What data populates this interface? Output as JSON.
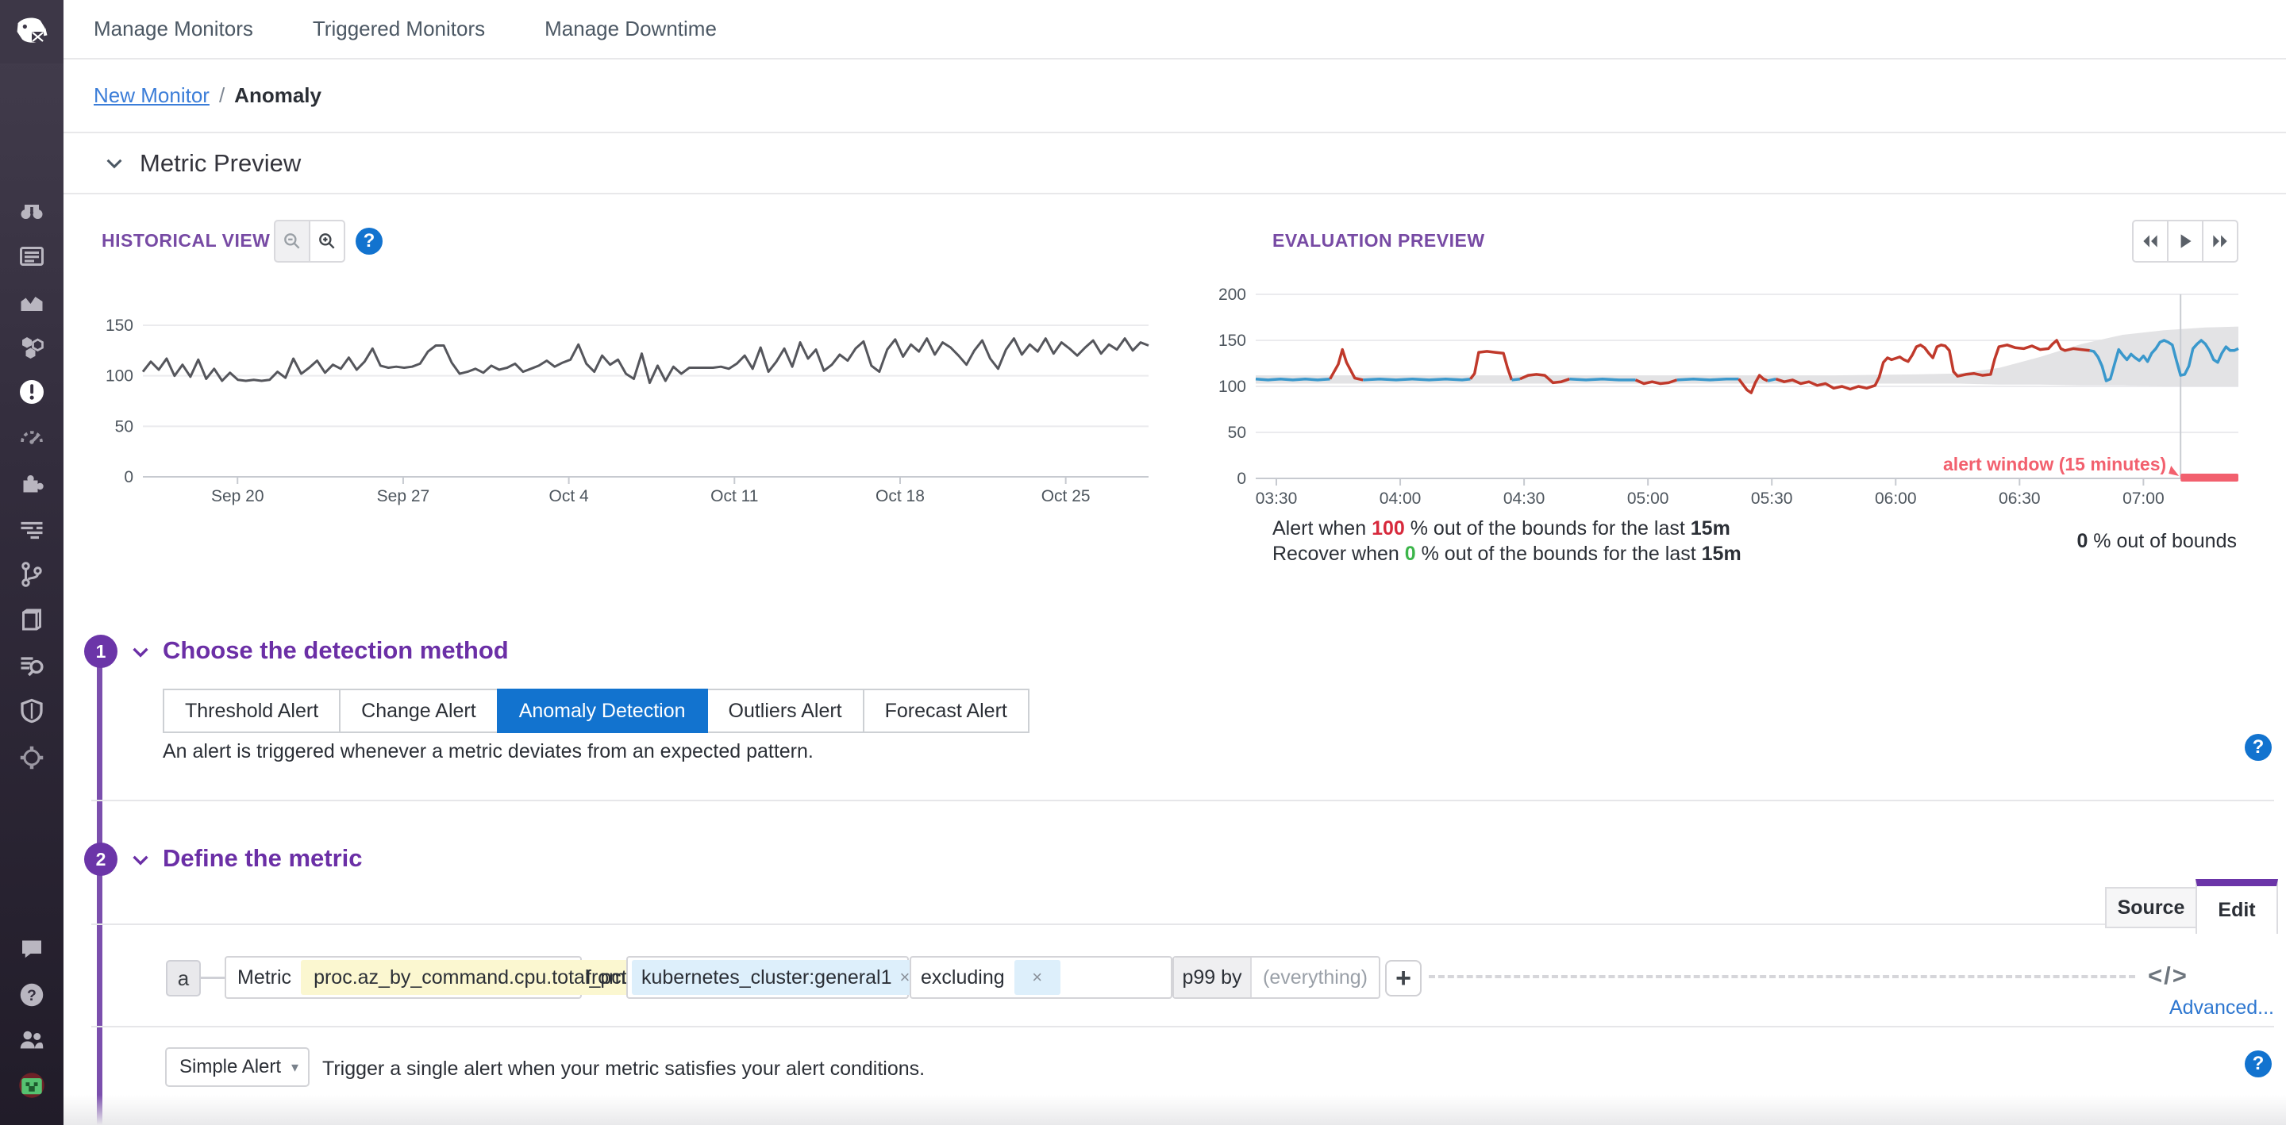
{
  "colors": {
    "purple": "#6b35a8",
    "tab_blue": "#1273cf",
    "link_blue": "#2e77d0",
    "chart_grey": "#55565c",
    "chart_blue": "#3a98cc",
    "chart_red": "#c0392b",
    "annotation_pink": "#f2606e",
    "alert_red": "#d7293c",
    "recover_green": "#3cb54a",
    "yellow_chip": "#fbf7d0",
    "blue_chip": "#ddeffb"
  },
  "sidebar": {
    "icons": [
      "datadog-logo",
      "binoculars-watchdog",
      "dashboards",
      "metrics",
      "infrastructure-hostmap",
      "monitors",
      "metrics-gauge",
      "integrations",
      "logs",
      "apm-traces",
      "notebooks",
      "log-explorer",
      "security",
      "network-map"
    ],
    "bottom_icons": [
      "chat",
      "help",
      "users",
      "user-avatar"
    ]
  },
  "topnav": {
    "items": [
      {
        "label": "Manage Monitors"
      },
      {
        "label": "Triggered Monitors"
      },
      {
        "label": "Manage Downtime"
      }
    ]
  },
  "breadcrumb": {
    "parent": "New Monitor",
    "separator": "/",
    "current": "Anomaly"
  },
  "metric_preview": {
    "title": "Metric Preview"
  },
  "historical": {
    "label": "HISTORICAL VIEW",
    "zoom_controls": [
      "zoom-out",
      "zoom-in"
    ],
    "help": "?"
  },
  "evaluation": {
    "label": "EVALUATION PREVIEW",
    "controls": [
      "rewind",
      "play",
      "fast-forward"
    ],
    "alert_line": {
      "prefix": "Alert when",
      "value": "100",
      "middle": "% out of the bounds for the last",
      "duration": "15m"
    },
    "recover_line": {
      "prefix": "Recover when",
      "value": "0",
      "middle": "% out of the bounds for the last",
      "duration": "15m"
    },
    "out_of_bounds": {
      "value": "0",
      "label": "% out of bounds"
    }
  },
  "section1": {
    "number": "1",
    "title": "Choose the detection method",
    "tabs": [
      {
        "label": "Threshold Alert",
        "selected": false
      },
      {
        "label": "Change Alert",
        "selected": false
      },
      {
        "label": "Anomaly Detection",
        "selected": true
      },
      {
        "label": "Outliers Alert",
        "selected": false
      },
      {
        "label": "Forecast Alert",
        "selected": false
      }
    ],
    "description": "An alert is triggered whenever a metric deviates from an expected pattern.",
    "help": "?"
  },
  "section2": {
    "number": "2",
    "title": "Define the metric",
    "source_tab": "Source",
    "edit_tab": "Edit",
    "query": {
      "letter": "a",
      "metric_label": "Metric",
      "metric": "proc.az_by_command.cpu.total_pct",
      "from_label": "from",
      "from_tag": "kubernetes_cluster:general1",
      "tag_close": "×",
      "excluding_label": "excluding",
      "excluding_close": "×",
      "aggregation": "p99 by",
      "group_placeholder": "(everything)",
      "add_button": "+",
      "code_icon": "</>"
    },
    "advanced": "Advanced..."
  },
  "simple_alert": {
    "selected": "Simple Alert",
    "caret": "▾",
    "description": "Trigger a single alert when your metric satisfies your alert conditions.",
    "help": "?"
  },
  "chart_data": [
    {
      "type": "line",
      "title": "HISTORICAL VIEW",
      "xlabel": "",
      "ylabel": "",
      "grid": true,
      "x_unit": "days since Sep 16",
      "x_range": [
        0,
        42.5
      ],
      "x_ticks": [
        {
          "label": "Sep 20",
          "x": 4
        },
        {
          "label": "Sep 27",
          "x": 11
        },
        {
          "label": "Oct 4",
          "x": 18
        },
        {
          "label": "Oct 11",
          "x": 25
        },
        {
          "label": "Oct 18",
          "x": 32
        },
        {
          "label": "Oct 25",
          "x": 39
        }
      ],
      "ylim": [
        0,
        160
      ],
      "y_ticks": [
        0,
        50,
        100,
        150
      ],
      "series": [
        {
          "name": "metric",
          "color": "#55565c",
          "x_start": 0,
          "x_step": 0.33465,
          "values": [
            104,
            114,
            106,
            117,
            100,
            111,
            99,
            116,
            97,
            107,
            95,
            103,
            96,
            95,
            96,
            95,
            96,
            104,
            98,
            117,
            102,
            108,
            115,
            103,
            111,
            107,
            118,
            106,
            114,
            127,
            110,
            108,
            109,
            108,
            109,
            112,
            124,
            130,
            130,
            113,
            102,
            104,
            107,
            103,
            110,
            106,
            108,
            112,
            104,
            107,
            110,
            115,
            109,
            113,
            116,
            131,
            112,
            104,
            120,
            111,
            116,
            102,
            97,
            122,
            93,
            110,
            95,
            109,
            102,
            108,
            108,
            108,
            108,
            109,
            107,
            112,
            120,
            107,
            128,
            104,
            114,
            127,
            109,
            133,
            117,
            126,
            105,
            111,
            121,
            115,
            127,
            134,
            110,
            104,
            126,
            136,
            119,
            131,
            124,
            137,
            121,
            133,
            128,
            120,
            111,
            125,
            135,
            117,
            107,
            126,
            137,
            121,
            131,
            124,
            137,
            122,
            133,
            127,
            120,
            128,
            135,
            122,
            131,
            126,
            137,
            125,
            133,
            130
          ]
        }
      ]
    },
    {
      "type": "line",
      "title": "EVALUATION PREVIEW",
      "xlabel": "",
      "ylabel": "",
      "grid": true,
      "x_unit": "minutes since 03:25",
      "x_range": [
        0,
        238
      ],
      "x_ticks": [
        {
          "label": "03:30",
          "x": 5
        },
        {
          "label": "04:00",
          "x": 35
        },
        {
          "label": "04:30",
          "x": 65
        },
        {
          "label": "05:00",
          "x": 95
        },
        {
          "label": "05:30",
          "x": 125
        },
        {
          "label": "06:00",
          "x": 155
        },
        {
          "label": "06:30",
          "x": 185
        },
        {
          "label": "07:00",
          "x": 215
        }
      ],
      "ylim": [
        0,
        210
      ],
      "y_ticks": [
        0,
        50,
        100,
        150,
        200
      ],
      "band": {
        "color": "#e3e3e5",
        "points": [
          [
            0,
            103,
            112
          ],
          [
            20,
            103,
            112
          ],
          [
            40,
            103,
            112
          ],
          [
            60,
            103,
            112
          ],
          [
            80,
            103,
            112
          ],
          [
            100,
            103,
            112
          ],
          [
            120,
            103,
            112
          ],
          [
            140,
            103,
            112
          ],
          [
            160,
            103,
            113
          ],
          [
            170,
            103,
            114
          ],
          [
            180,
            102,
            120
          ],
          [
            190,
            102,
            132
          ],
          [
            200,
            101,
            146
          ],
          [
            210,
            101,
            156
          ],
          [
            220,
            100,
            161
          ],
          [
            230,
            100,
            164
          ],
          [
            238,
            100,
            165
          ]
        ]
      },
      "cursor_x": 224,
      "alert_window": {
        "text": "alert window (15 minutes)",
        "start": 224,
        "end": 238,
        "color": "#f2606e"
      },
      "segments": [
        {
          "color": "#3a98cc",
          "points": [
            [
              0,
              108
            ],
            [
              3,
              107
            ],
            [
              6,
              108
            ],
            [
              9,
              107
            ],
            [
              12,
              108
            ],
            [
              15,
              107
            ],
            [
              18,
              108
            ]
          ]
        },
        {
          "color": "#c0392b",
          "points": [
            [
              18,
              108
            ],
            [
              20,
              124
            ],
            [
              21,
              140
            ],
            [
              22,
              126
            ],
            [
              24,
              109
            ],
            [
              26,
              107
            ]
          ]
        },
        {
          "color": "#3a98cc",
          "points": [
            [
              26,
              107
            ],
            [
              30,
              108
            ],
            [
              34,
              107
            ],
            [
              38,
              108
            ],
            [
              42,
              107
            ],
            [
              46,
              108
            ],
            [
              50,
              107
            ],
            [
              52,
              108
            ]
          ]
        },
        {
          "color": "#c0392b",
          "points": [
            [
              52,
              108
            ],
            [
              53,
              114
            ],
            [
              54,
              137
            ],
            [
              56,
              138
            ],
            [
              58,
              137
            ],
            [
              60,
              136
            ],
            [
              61,
              120
            ],
            [
              62,
              107
            ]
          ]
        },
        {
          "color": "#3a98cc",
          "points": [
            [
              62,
              107
            ],
            [
              64,
              108
            ]
          ]
        },
        {
          "color": "#c0392b",
          "points": [
            [
              64,
              108
            ],
            [
              66,
              112
            ],
            [
              68,
              113
            ],
            [
              70,
              112
            ],
            [
              71,
              108
            ],
            [
              72,
              104
            ],
            [
              74,
              105
            ],
            [
              76,
              108
            ]
          ]
        },
        {
          "color": "#3a98cc",
          "points": [
            [
              76,
              108
            ],
            [
              80,
              107
            ],
            [
              84,
              108
            ],
            [
              88,
              107
            ],
            [
              92,
              107
            ]
          ]
        },
        {
          "color": "#c0392b",
          "points": [
            [
              92,
              107
            ],
            [
              94,
              103
            ],
            [
              96,
              105
            ],
            [
              98,
              103
            ],
            [
              100,
              104
            ],
            [
              102,
              107
            ]
          ]
        },
        {
          "color": "#3a98cc",
          "points": [
            [
              102,
              107
            ],
            [
              106,
              108
            ],
            [
              110,
              107
            ],
            [
              114,
              108
            ],
            [
              117,
              108
            ]
          ]
        },
        {
          "color": "#c0392b",
          "points": [
            [
              117,
              108
            ],
            [
              119,
              96
            ],
            [
              120,
              93
            ],
            [
              121,
              104
            ],
            [
              122,
              112
            ],
            [
              123,
              108
            ],
            [
              124,
              106
            ]
          ]
        },
        {
          "color": "#3a98cc",
          "points": [
            [
              124,
              106
            ],
            [
              126,
              108
            ]
          ]
        },
        {
          "color": "#c0392b",
          "points": [
            [
              126,
              108
            ],
            [
              128,
              105
            ],
            [
              130,
              107
            ],
            [
              132,
              103
            ],
            [
              134,
              105
            ],
            [
              136,
              101
            ],
            [
              138,
              103
            ],
            [
              140,
              98
            ],
            [
              142,
              100
            ],
            [
              144,
              97
            ],
            [
              146,
              100
            ],
            [
              148,
              98
            ],
            [
              150,
              101
            ],
            [
              151,
              110
            ],
            [
              152,
              126
            ],
            [
              153,
              131
            ],
            [
              154,
              129
            ],
            [
              156,
              132
            ],
            [
              157,
              129
            ],
            [
              158,
              127
            ],
            [
              159,
              134
            ],
            [
              160,
              143
            ],
            [
              161,
              145
            ],
            [
              162,
              142
            ],
            [
              163,
              136
            ],
            [
              164,
              131
            ],
            [
              165,
              143
            ],
            [
              166,
              145
            ],
            [
              167,
              144
            ],
            [
              168,
              139
            ],
            [
              169,
              116
            ],
            [
              170,
              111
            ],
            [
              172,
              113
            ],
            [
              174,
              114
            ],
            [
              176,
              112
            ],
            [
              178,
              113
            ],
            [
              179,
              130
            ],
            [
              180,
              143
            ],
            [
              182,
              145
            ],
            [
              184,
              142
            ],
            [
              186,
              141
            ],
            [
              188,
              144
            ],
            [
              190,
              140
            ],
            [
              192,
              141
            ],
            [
              193,
              146
            ],
            [
              194,
              150
            ],
            [
              195,
              141
            ],
            [
              196,
              139
            ],
            [
              198,
              141
            ],
            [
              200,
              140
            ],
            [
              202,
              139
            ]
          ]
        },
        {
          "color": "#3a98cc",
          "points": [
            [
              202,
              139
            ],
            [
              203,
              138
            ],
            [
              204,
              132
            ],
            [
              205,
              122
            ],
            [
              206,
              106
            ],
            [
              207,
              108
            ],
            [
              208,
              124
            ],
            [
              209,
              140
            ],
            [
              210,
              134
            ],
            [
              211,
              129
            ],
            [
              212,
              135
            ],
            [
              213,
              131
            ],
            [
              214,
              128
            ],
            [
              215,
              133
            ],
            [
              216,
              127
            ],
            [
              217,
              136
            ],
            [
              218,
              141
            ],
            [
              219,
              148
            ],
            [
              220,
              150
            ],
            [
              221,
              148
            ],
            [
              222,
              145
            ],
            [
              223,
              128
            ],
            [
              224,
              112
            ],
            [
              225,
              113
            ],
            [
              226,
              122
            ],
            [
              227,
              141
            ],
            [
              228,
              146
            ],
            [
              229,
              150
            ],
            [
              230,
              146
            ],
            [
              231,
              139
            ],
            [
              232,
              129
            ],
            [
              233,
              126
            ],
            [
              234,
              136
            ],
            [
              235,
              143
            ],
            [
              236,
              139
            ],
            [
              237,
              139
            ],
            [
              238,
              141
            ]
          ]
        }
      ]
    }
  ]
}
